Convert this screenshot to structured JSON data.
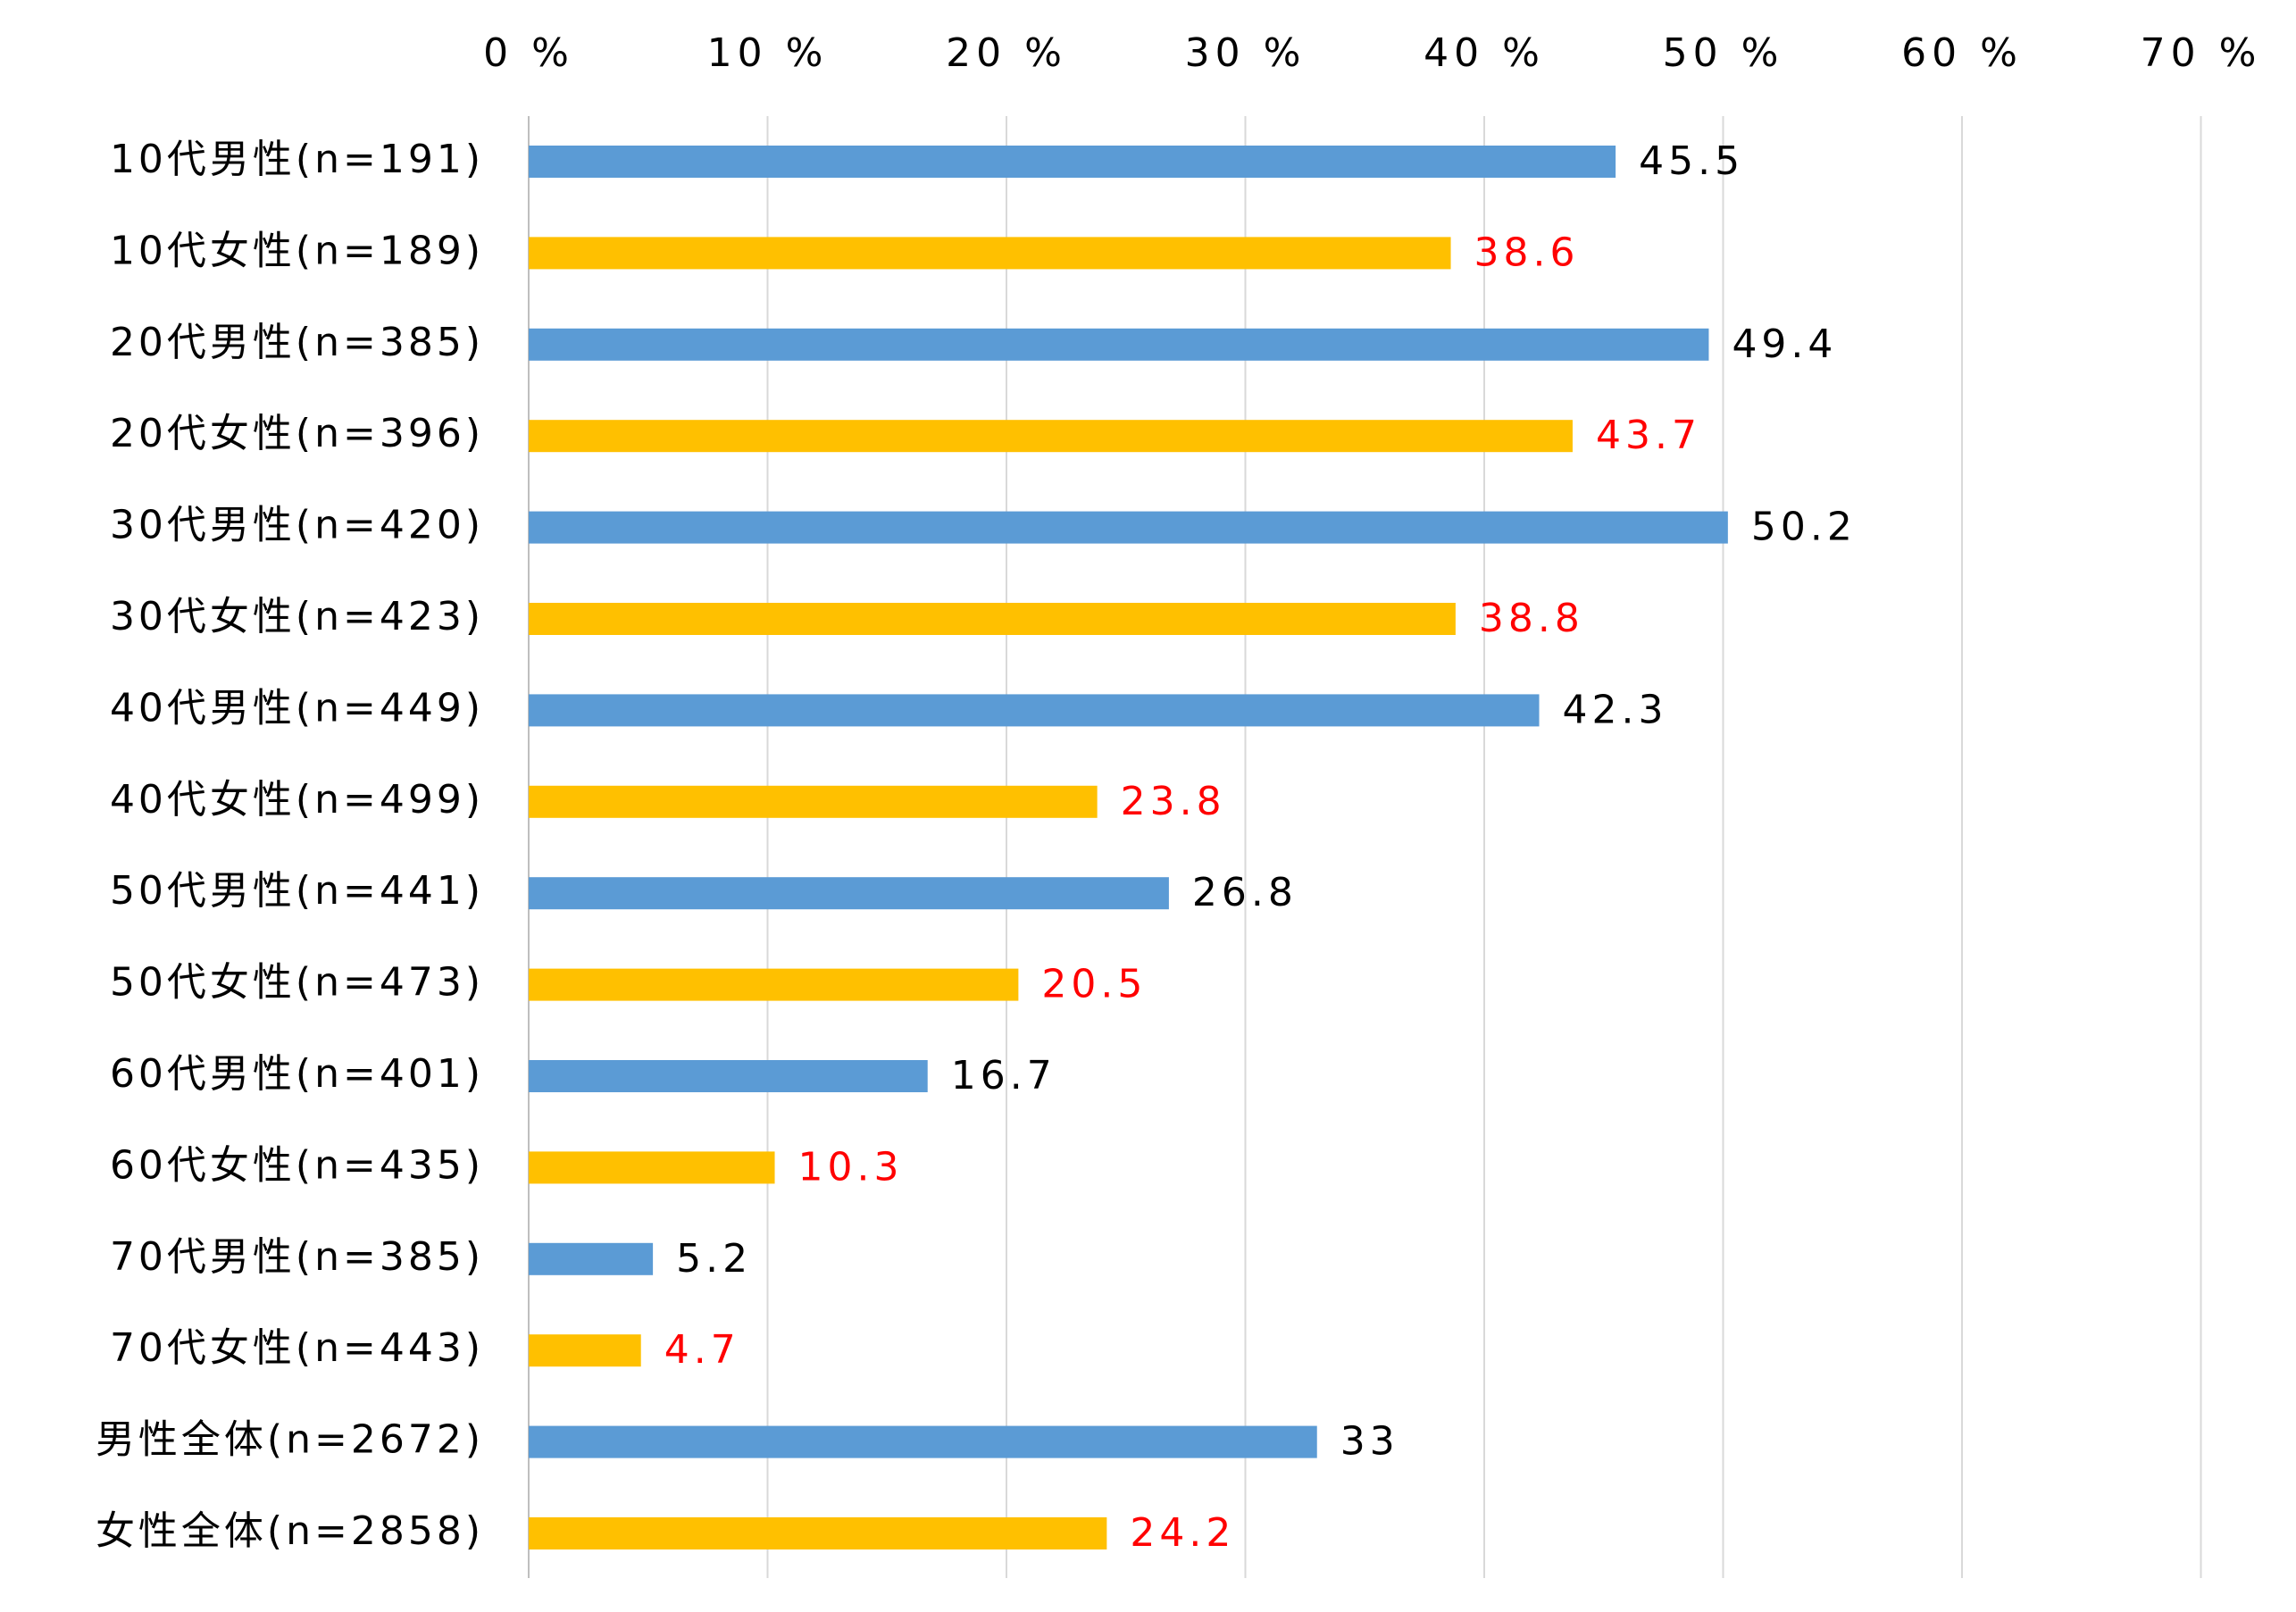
{
  "chart_data": {
    "type": "bar",
    "orientation": "horizontal",
    "title": "",
    "xlabel": "",
    "ylabel": "",
    "xlim": [
      0,
      70
    ],
    "x_ticks": [
      0,
      10,
      20,
      30,
      40,
      50,
      60,
      70
    ],
    "x_tick_labels": [
      "0 %",
      "10 %",
      "20 %",
      "30 %",
      "40 %",
      "50 %",
      "60 %",
      "70 %"
    ],
    "grid": "vertical",
    "legend": "none",
    "categories": [
      "10代男性(n=191)",
      "10代女性(n=189)",
      "20代男性(n=385)",
      "20代女性(n=396)",
      "30代男性(n=420)",
      "30代女性(n=423)",
      "40代男性(n=449)",
      "40代女性(n=499)",
      "50代男性(n=441)",
      "50代女性(n=473)",
      "60代男性(n=401)",
      "60代女性(n=435)",
      "70代男性(n=385)",
      "70代女性(n=443)",
      "男性全体(n=2672)",
      "女性全体(n=2858)"
    ],
    "values": [
      45.5,
      38.6,
      49.4,
      43.7,
      50.2,
      38.8,
      42.3,
      23.8,
      26.8,
      20.5,
      16.7,
      10.3,
      5.2,
      4.7,
      33,
      24.2
    ],
    "value_labels": [
      "45.5",
      "38.6",
      "49.4",
      "43.7",
      "50.2",
      "38.8",
      "42.3",
      "23.8",
      "26.8",
      "20.5",
      "16.7",
      "10.3",
      "5.2",
      "4.7",
      "33",
      "24.2"
    ],
    "groups": [
      "male",
      "female",
      "male",
      "female",
      "male",
      "female",
      "male",
      "female",
      "male",
      "female",
      "male",
      "female",
      "male",
      "female",
      "male",
      "female"
    ]
  },
  "colors": {
    "male_bar": "#5B9BD5",
    "female_bar": "#FFC000",
    "male_label": "#000000",
    "female_label": "#FF0000",
    "gridline": "#D9D9D9",
    "axis_line": "#BFBFBF"
  }
}
